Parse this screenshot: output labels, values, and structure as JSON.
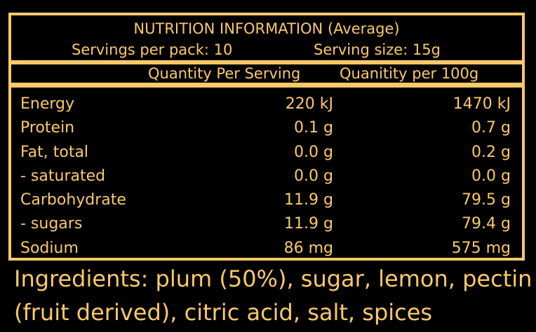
{
  "panel": {
    "title": "NUTRITION INFORMATION (Average)",
    "servings_per_pack": "Servings per pack: 10",
    "serving_size": "Serving size: 15g",
    "col_per_serving": "Quantity Per Serving",
    "col_per_100g": "Quanitity per 100g",
    "rows": [
      {
        "label": "Energy",
        "per_serving": "220 kJ",
        "per_100g": "1470 kJ"
      },
      {
        "label": "Protein",
        "per_serving": "0.1 g",
        "per_100g": "0.7 g"
      },
      {
        "label": "Fat, total",
        "per_serving": "0.0 g",
        "per_100g": "0.2 g"
      },
      {
        "label": "- saturated",
        "per_serving": "0.0 g",
        "per_100g": "0.0 g"
      },
      {
        "label": "Carbohydrate",
        "per_serving": "11.9 g",
        "per_100g": "79.5 g"
      },
      {
        "label": "- sugars",
        "per_serving": "11.9 g",
        "per_100g": "79.4 g"
      },
      {
        "label": "Sodium",
        "per_serving": "86 mg",
        "per_100g": "575 mg"
      }
    ]
  },
  "ingredients": "Ingredients: plum (50%), sugar, lemon, pectin (fruit derived), citric acid, salt, spices",
  "colors": {
    "background": "#000000",
    "accent": "#fbc96a"
  }
}
